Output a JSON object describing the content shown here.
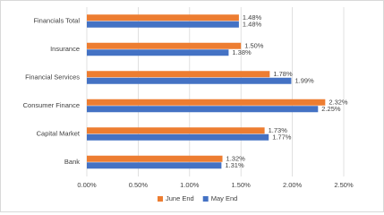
{
  "chart_data": {
    "type": "hbar",
    "categories": [
      "Financials Total",
      "Insurance",
      "Financial Services",
      "Consumer Finance",
      "Capital Market",
      "Bank"
    ],
    "series": [
      {
        "name": "June End",
        "color": "#ed7d31",
        "values": [
          1.48,
          1.5,
          1.78,
          2.32,
          1.73,
          1.32
        ],
        "value_labels": [
          "1.48%",
          "1.50%",
          "1.78%",
          "2.32%",
          "1.73%",
          "1.32%"
        ]
      },
      {
        "name": "May End",
        "color": "#4472c4",
        "values": [
          1.48,
          1.38,
          1.99,
          2.25,
          1.77,
          1.31
        ],
        "value_labels": [
          "1.48%",
          "1.38%",
          "1.99%",
          "2.25%",
          "1.77%",
          "1.31%"
        ]
      }
    ],
    "xlim": [
      0,
      2.5
    ],
    "xticks": [
      {
        "value": 0,
        "label": "0.00%"
      },
      {
        "value": 0.5,
        "label": "0.50%"
      },
      {
        "value": 1,
        "label": "1.00%"
      },
      {
        "value": 1.5,
        "label": "1.50%"
      },
      {
        "value": 2,
        "label": "2.00%"
      },
      {
        "value": 2.5,
        "label": "2.50%"
      }
    ],
    "grid": true,
    "legend": "bottom"
  }
}
